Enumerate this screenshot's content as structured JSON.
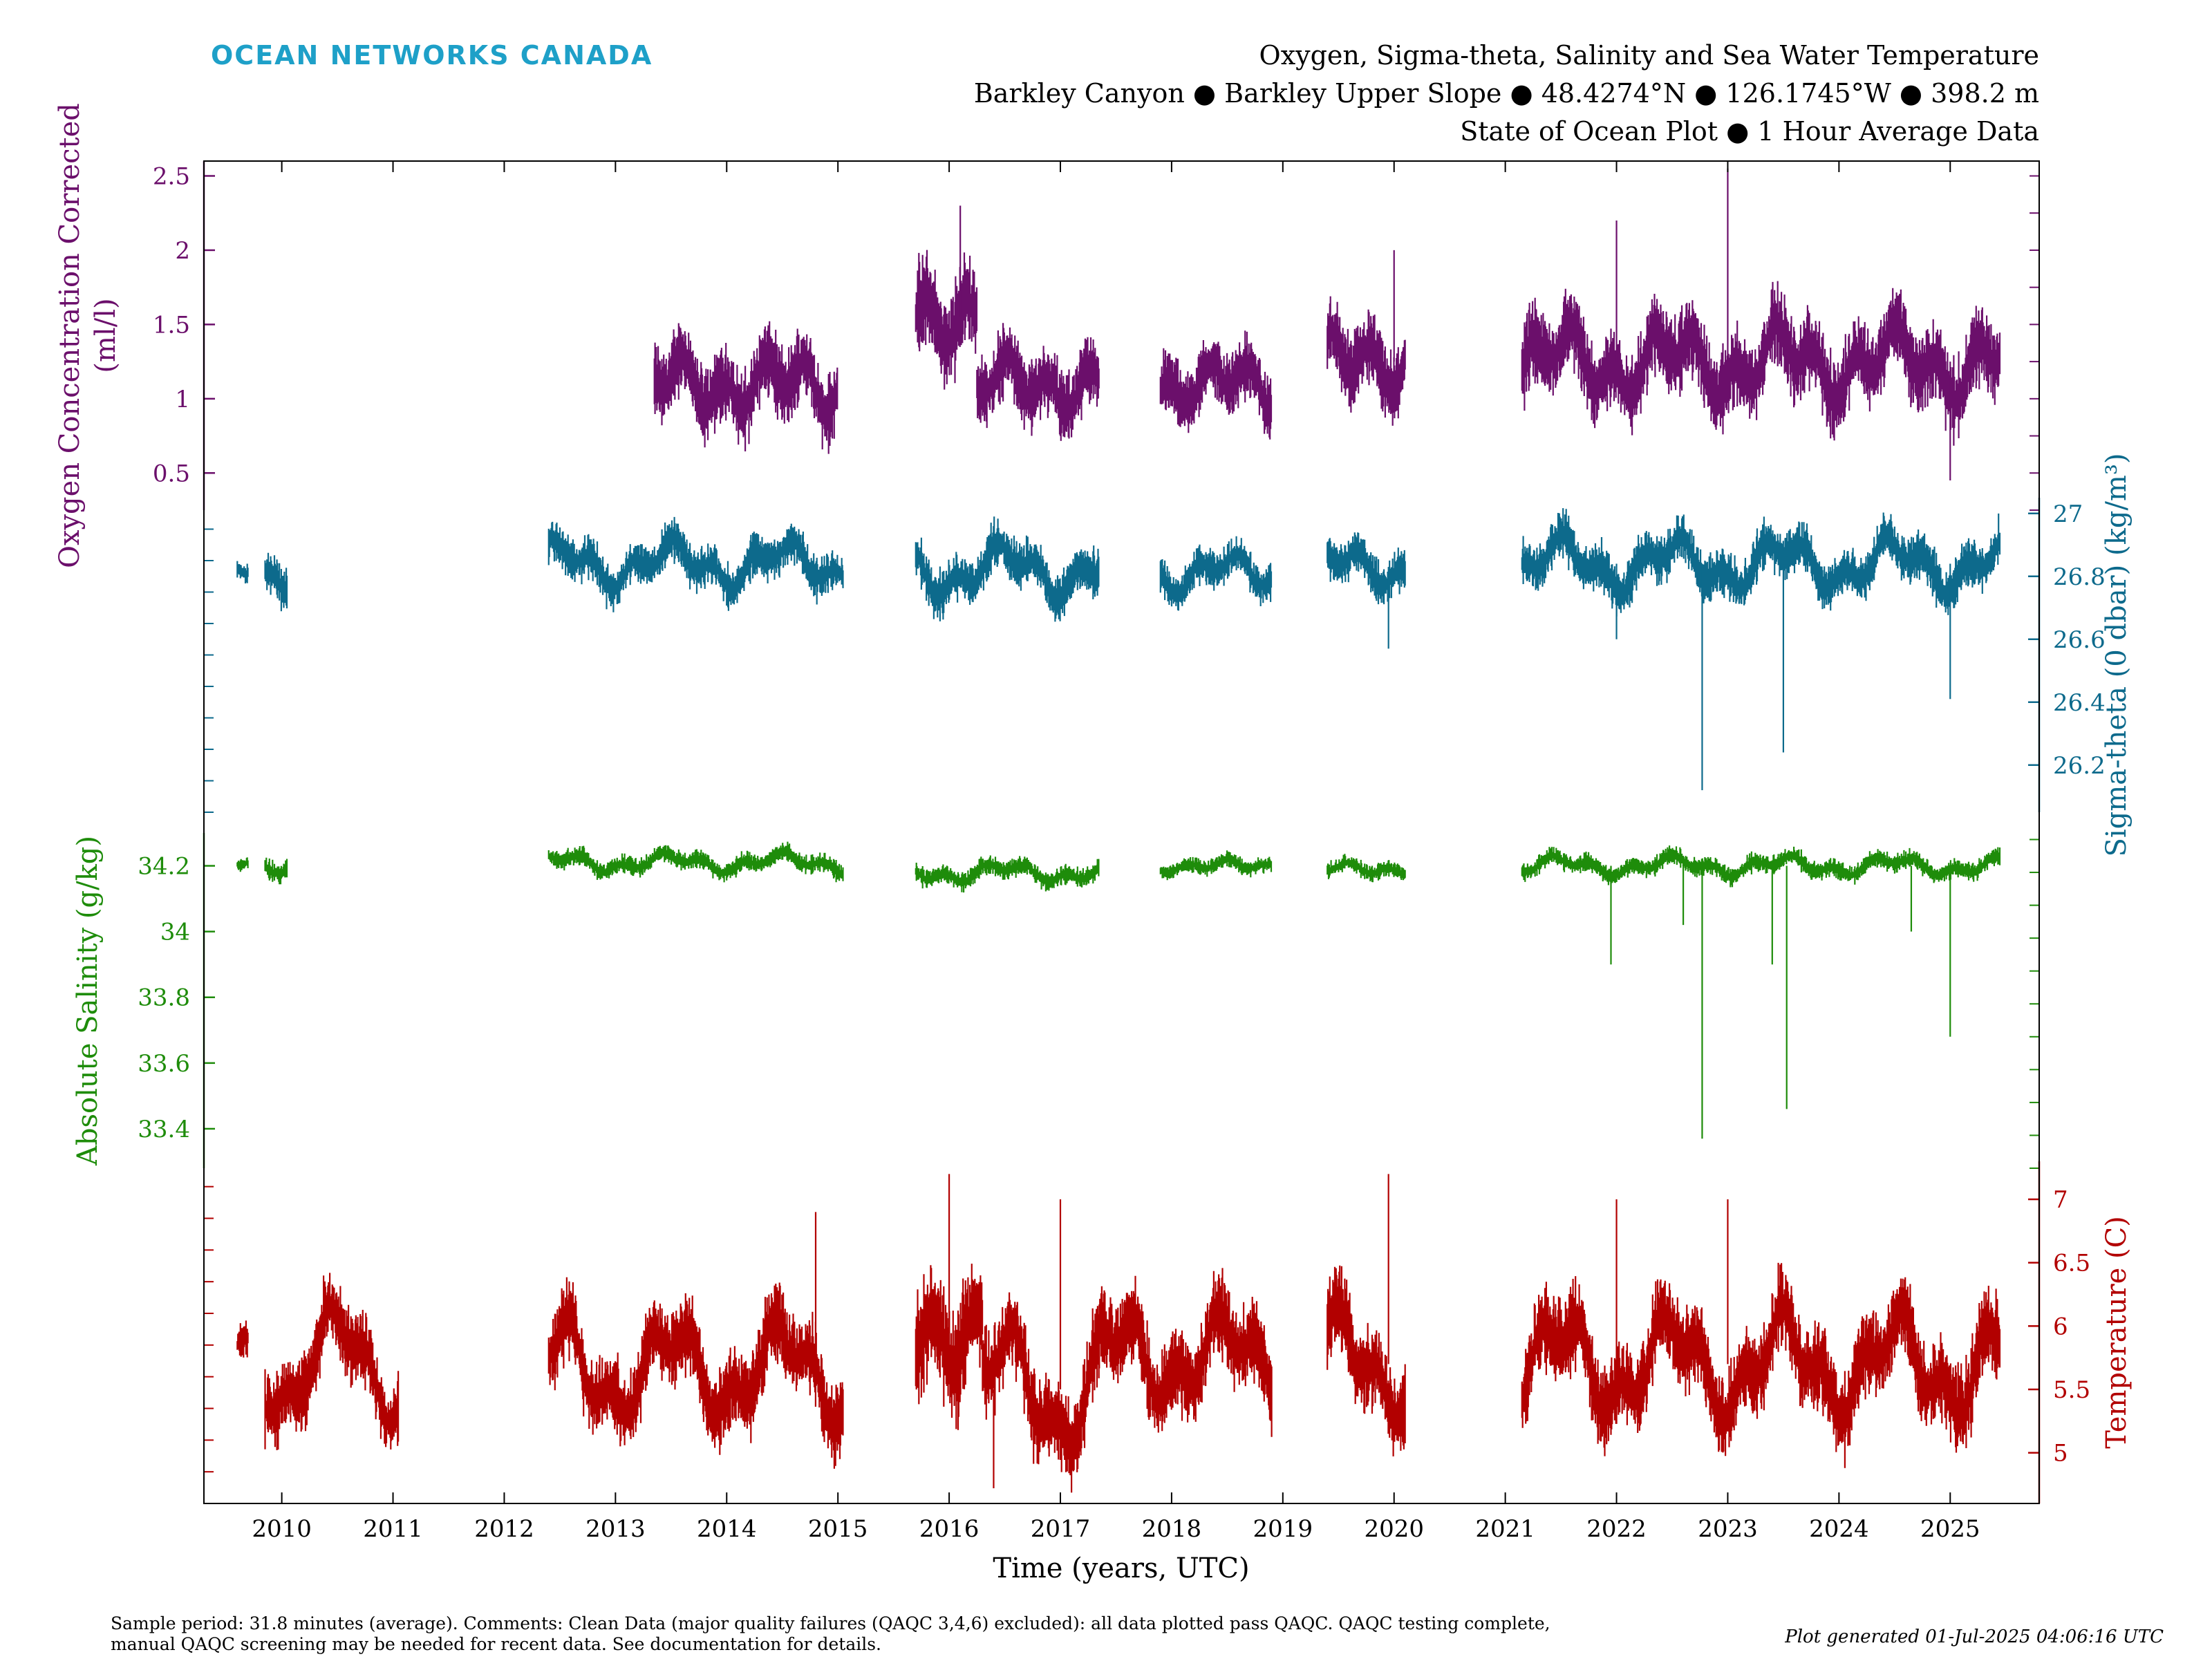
{
  "brand": "OCEAN NETWORKS CANADA",
  "title_lines": [
    "Oxygen, Sigma-theta, Salinity and Sea Water Temperature",
    "Barkley Canyon ● Barkley Upper Slope ● 48.4274°N ● 126.1745°W ● 398.2 m",
    "State of Ocean Plot ● 1 Hour Average Data"
  ],
  "footer": {
    "line1": "Sample period: 31.8 minutes (average). Comments: Clean Data (major quality failures (QAQC 3,4,6) excluded): all data plotted pass QAQC. QAQC testing complete,",
    "line2": "manual QAQC screening may be needed for recent data. See documentation for details.",
    "generated": "Plot generated 01-Jul-2025 04:06:16 UTC"
  },
  "colors": {
    "oxygen": "#6b0f6b",
    "sigma": "#0d6a8c",
    "salinity": "#1e8c0a",
    "temperature": "#b20000",
    "brand": "#1ea0c8"
  },
  "chart_data": {
    "type": "scatter",
    "xlabel": "Time (years, UTC)",
    "xlim": [
      2009.3,
      2025.8
    ],
    "x_ticks": [
      2010,
      2011,
      2012,
      2013,
      2014,
      2015,
      2016,
      2017,
      2018,
      2019,
      2020,
      2021,
      2022,
      2023,
      2024,
      2025
    ],
    "x_tick_labels": [
      "2010",
      "2011",
      "2012",
      "2013",
      "2014",
      "2015",
      "2016",
      "2017",
      "2018",
      "2019",
      "2020",
      "2021",
      "2022",
      "2023",
      "2024",
      "2025"
    ],
    "grid": false,
    "series": [
      {
        "key": "oxygen",
        "label_lines": [
          "Oxygen Concentration Corrected",
          "(ml/l)"
        ],
        "axis_side": "left",
        "ylim": [
          0.25,
          2.6
        ],
        "ticks": [
          0.5,
          1,
          1.5,
          2,
          2.5
        ],
        "tick_labels": [
          "0.5",
          "1",
          "1.5",
          "2",
          "2.5"
        ],
        "segments": [
          {
            "start": 2013.35,
            "end": 2015.0,
            "base": 1.1,
            "spread": 0.26,
            "amp": 0.1
          },
          {
            "start": 2015.7,
            "end": 2016.25,
            "base": 1.55,
            "spread": 0.32,
            "amp": 0.05
          },
          {
            "start": 2016.25,
            "end": 2017.35,
            "base": 1.1,
            "spread": 0.25,
            "amp": 0.08
          },
          {
            "start": 2017.9,
            "end": 2018.9,
            "base": 1.1,
            "spread": 0.22,
            "amp": 0.08
          },
          {
            "start": 2019.4,
            "end": 2020.1,
            "base": 1.25,
            "spread": 0.25,
            "amp": 0.08
          },
          {
            "start": 2021.15,
            "end": 2025.45,
            "base": 1.25,
            "spread": 0.28,
            "amp": 0.15
          }
        ],
        "spikes": [
          {
            "x": 2023.0,
            "y": 2.55
          },
          {
            "x": 2022.0,
            "y": 2.2
          },
          {
            "x": 2020.0,
            "y": 2.0
          },
          {
            "x": 2016.1,
            "y": 2.3
          },
          {
            "x": 2025.0,
            "y": 0.45
          }
        ]
      },
      {
        "key": "sigma",
        "label_lines": [
          "Sigma-theta (0 dbar) (kg/m³)"
        ],
        "axis_side": "right",
        "ylim": [
          26.05,
          27.05
        ],
        "ticks": [
          26.2,
          26.4,
          26.6,
          26.8,
          27
        ],
        "tick_labels": [
          "26.2",
          "26.4",
          "26.6",
          "26.8",
          "27"
        ],
        "segments": [
          {
            "start": 2009.6,
            "end": 2009.7,
            "base": 26.82,
            "spread": 0.03,
            "amp": 0.0
          },
          {
            "start": 2009.85,
            "end": 2010.05,
            "base": 26.8,
            "spread": 0.07,
            "amp": 0.02
          },
          {
            "start": 2012.4,
            "end": 2015.05,
            "base": 26.84,
            "spread": 0.07,
            "amp": 0.05
          },
          {
            "start": 2015.7,
            "end": 2017.35,
            "base": 26.82,
            "spread": 0.08,
            "amp": 0.06
          },
          {
            "start": 2017.9,
            "end": 2018.9,
            "base": 26.81,
            "spread": 0.06,
            "amp": 0.04
          },
          {
            "start": 2019.4,
            "end": 2020.1,
            "base": 26.83,
            "spread": 0.07,
            "amp": 0.04
          },
          {
            "start": 2021.15,
            "end": 2025.45,
            "base": 26.84,
            "spread": 0.08,
            "amp": 0.06
          }
        ],
        "spikes": [
          {
            "x": 2022.77,
            "y": 26.12
          },
          {
            "x": 2023.5,
            "y": 26.24
          },
          {
            "x": 2025.0,
            "y": 26.41
          },
          {
            "x": 2022.0,
            "y": 26.6
          },
          {
            "x": 2019.95,
            "y": 26.57
          }
        ]
      },
      {
        "key": "salinity",
        "label_lines": [
          "Absolute Salinity (g/kg)"
        ],
        "axis_side": "left",
        "ylim": [
          33.28,
          34.3
        ],
        "ticks": [
          33.4,
          33.6,
          33.8,
          34,
          34.2
        ],
        "tick_labels": [
          "33.4",
          "33.6",
          "33.8",
          "34",
          "34.2"
        ],
        "segments": [
          {
            "start": 2009.6,
            "end": 2009.7,
            "base": 34.21,
            "spread": 0.02,
            "amp": 0.0
          },
          {
            "start": 2009.85,
            "end": 2010.05,
            "base": 34.2,
            "spread": 0.03,
            "amp": 0.01
          },
          {
            "start": 2012.4,
            "end": 2015.05,
            "base": 34.21,
            "spread": 0.03,
            "amp": 0.02
          },
          {
            "start": 2015.7,
            "end": 2017.35,
            "base": 34.18,
            "spread": 0.03,
            "amp": 0.02
          },
          {
            "start": 2017.9,
            "end": 2018.9,
            "base": 34.2,
            "spread": 0.025,
            "amp": 0.01
          },
          {
            "start": 2019.4,
            "end": 2020.1,
            "base": 34.19,
            "spread": 0.025,
            "amp": 0.01
          },
          {
            "start": 2021.15,
            "end": 2025.45,
            "base": 34.2,
            "spread": 0.03,
            "amp": 0.02
          }
        ],
        "spikes": [
          {
            "x": 2022.77,
            "y": 33.37
          },
          {
            "x": 2023.53,
            "y": 33.46
          },
          {
            "x": 2025.0,
            "y": 33.68
          },
          {
            "x": 2021.95,
            "y": 33.9
          },
          {
            "x": 2023.4,
            "y": 33.9
          },
          {
            "x": 2022.6,
            "y": 34.02
          },
          {
            "x": 2024.65,
            "y": 34.0
          }
        ]
      },
      {
        "key": "temperature",
        "label_lines": [
          "Temperature (C)"
        ],
        "axis_side": "right",
        "ylim": [
          4.6,
          7.3
        ],
        "ticks": [
          5,
          5.5,
          6,
          6.5,
          7
        ],
        "tick_labels": [
          "5",
          "5.5",
          "6",
          "6.5",
          "7"
        ],
        "segments": [
          {
            "start": 2009.6,
            "end": 2009.7,
            "base": 5.85,
            "spread": 0.15,
            "amp": 0.0
          },
          {
            "start": 2009.85,
            "end": 2011.05,
            "base": 5.7,
            "spread": 0.3,
            "amp": 0.35
          },
          {
            "start": 2012.4,
            "end": 2015.05,
            "base": 5.65,
            "spread": 0.32,
            "amp": 0.3
          },
          {
            "start": 2015.7,
            "end": 2016.3,
            "base": 5.95,
            "spread": 0.45,
            "amp": 0.1
          },
          {
            "start": 2016.3,
            "end": 2017.35,
            "base": 5.5,
            "spread": 0.35,
            "amp": 0.4
          },
          {
            "start": 2017.35,
            "end": 2018.9,
            "base": 5.75,
            "spread": 0.35,
            "amp": 0.25
          },
          {
            "start": 2019.4,
            "end": 2020.1,
            "base": 5.7,
            "spread": 0.35,
            "amp": 0.3
          },
          {
            "start": 2021.15,
            "end": 2025.45,
            "base": 5.7,
            "spread": 0.35,
            "amp": 0.3
          }
        ],
        "spikes": [
          {
            "x": 2019.95,
            "y": 7.2
          },
          {
            "x": 2016.0,
            "y": 7.2
          },
          {
            "x": 2016.4,
            "y": 4.72
          },
          {
            "x": 2022.0,
            "y": 7.0
          },
          {
            "x": 2023.0,
            "y": 7.0
          },
          {
            "x": 2014.8,
            "y": 6.9
          },
          {
            "x": 2017.0,
            "y": 7.0
          }
        ]
      }
    ]
  }
}
